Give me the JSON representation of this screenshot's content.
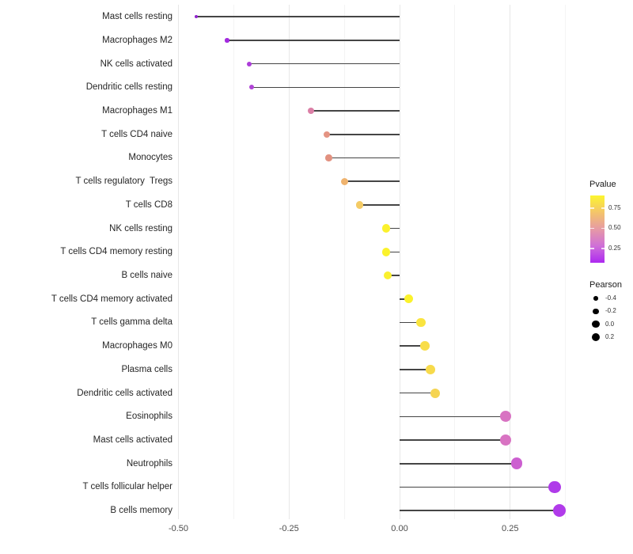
{
  "chart_data": {
    "type": "lollipop",
    "title": "",
    "xlabel": "",
    "ylabel": "",
    "grid": "vertical-only",
    "x_axis": {
      "tick_labels": [
        "-0.50",
        "-0.25",
        "0.00",
        "0.25"
      ],
      "tick_values": [
        -0.5,
        -0.25,
        0.0,
        0.25
      ],
      "minor_tick_values": [
        -0.375,
        -0.125,
        0.125,
        0.375
      ],
      "xlim": [
        -0.53,
        0.385
      ]
    },
    "value_name": "Pearson",
    "color_name": "Pvalue",
    "points": [
      {
        "label": "Mast cells resting",
        "pearson": -0.46,
        "color": "#9123CE"
      },
      {
        "label": "Macrophages M2",
        "pearson": -0.39,
        "color": "#A32ADF"
      },
      {
        "label": "NK cells activated",
        "pearson": -0.34,
        "color": "#AC3CD9"
      },
      {
        "label": "Dendritic cells resting",
        "pearson": -0.335,
        "color": "#B044D6"
      },
      {
        "label": "Macrophages M1",
        "pearson": -0.2,
        "color": "#DB7FA6"
      },
      {
        "label": "T cells CD4 naive",
        "pearson": -0.165,
        "color": "#E49483"
      },
      {
        "label": "Monocytes",
        "pearson": -0.16,
        "color": "#E29180"
      },
      {
        "label": "T cells regulatory  Tregs",
        "pearson": -0.125,
        "color": "#EFB36E"
      },
      {
        "label": "T cells CD8",
        "pearson": -0.09,
        "color": "#F4CB65"
      },
      {
        "label": "NK cells resting",
        "pearson": -0.03,
        "color": "#FBF12D"
      },
      {
        "label": "T cells CD4 memory resting",
        "pearson": -0.03,
        "color": "#FBF22C"
      },
      {
        "label": "B cells naive",
        "pearson": -0.027,
        "color": "#FAF02E"
      },
      {
        "label": "T cells CD4 memory activated",
        "pearson": 0.021,
        "color": "#FBF22C"
      },
      {
        "label": "T cells gamma delta",
        "pearson": 0.048,
        "color": "#FAE43F"
      },
      {
        "label": "Macrophages M0",
        "pearson": 0.057,
        "color": "#F8DD49"
      },
      {
        "label": "Plasma cells",
        "pearson": 0.07,
        "color": "#F7DA4C"
      },
      {
        "label": "Dendritic cells activated",
        "pearson": 0.08,
        "color": "#F5D452"
      },
      {
        "label": "Eosinophils",
        "pearson": 0.24,
        "color": "#D873C2"
      },
      {
        "label": "Mast cells activated",
        "pearson": 0.24,
        "color": "#D873C2"
      },
      {
        "label": "Neutrophils",
        "pearson": 0.265,
        "color": "#CC5FD0"
      },
      {
        "label": "T cells follicular helper",
        "pearson": 0.35,
        "color": "#AF3BE9"
      },
      {
        "label": "B cells memory",
        "pearson": 0.362,
        "color": "#B13BEA"
      }
    ],
    "legend_pvalue": {
      "title": "Pvalue",
      "tick_labels": [
        "0.75",
        "0.50",
        "0.25"
      ],
      "gradient_top_to_bottom": [
        "#FCF52F",
        "#F4C56A",
        "#E69AA5",
        "#CF6FD8",
        "#AD29F0"
      ]
    },
    "legend_pearson": {
      "title": "Pearson",
      "entries": [
        {
          "label": "-0.4"
        },
        {
          "label": "-0.2"
        },
        {
          "label": "0.0"
        },
        {
          "label": "0.2"
        }
      ],
      "dot_color": "#000000"
    }
  }
}
